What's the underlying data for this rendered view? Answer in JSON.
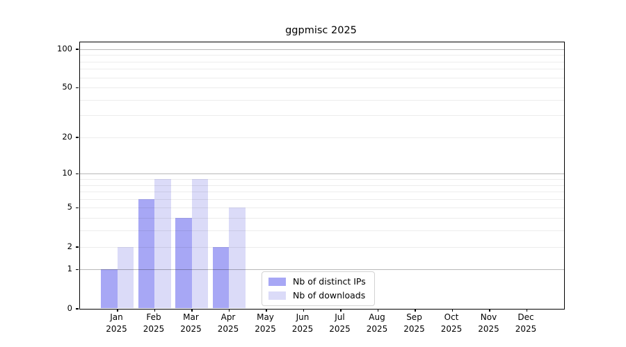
{
  "chart_data": {
    "type": "bar",
    "title": "ggpmisc 2025",
    "categories": [
      "Jan",
      "Feb",
      "Mar",
      "Apr",
      "May",
      "Jun",
      "Jul",
      "Aug",
      "Sep",
      "Oct",
      "Nov",
      "Dec"
    ],
    "category_year": "2025",
    "series": [
      {
        "name": "Nb of distinct IPs",
        "color": "#a7a7f5",
        "values": [
          1,
          6,
          4,
          2,
          0,
          0,
          0,
          0,
          0,
          0,
          0,
          0
        ]
      },
      {
        "name": "Nb of downloads",
        "color": "#dbdbf8",
        "values": [
          2,
          9,
          9,
          5,
          0,
          0,
          0,
          0,
          0,
          0,
          0,
          0
        ]
      }
    ],
    "y_scale": "log1p",
    "y_max": 113,
    "ylim": [
      0,
      113
    ],
    "y_ticks": [
      0,
      1,
      2,
      5,
      10,
      20,
      50,
      100
    ],
    "gridlines_major": [
      1,
      10,
      100
    ],
    "gridlines_minor": [
      2,
      3,
      4,
      5,
      6,
      7,
      8,
      9,
      20,
      30,
      40,
      50,
      60,
      70,
      80,
      90
    ],
    "grid": "on",
    "legend_position": "inside-bottom-center",
    "xlabel": "",
    "ylabel": "",
    "style": {
      "major_grid_color": "#b8b8b8",
      "minor_grid_color": "#ececec",
      "spine_color": "#000000",
      "background_color": "#ffffff",
      "legend_border_color": "#d2d2d2"
    }
  }
}
